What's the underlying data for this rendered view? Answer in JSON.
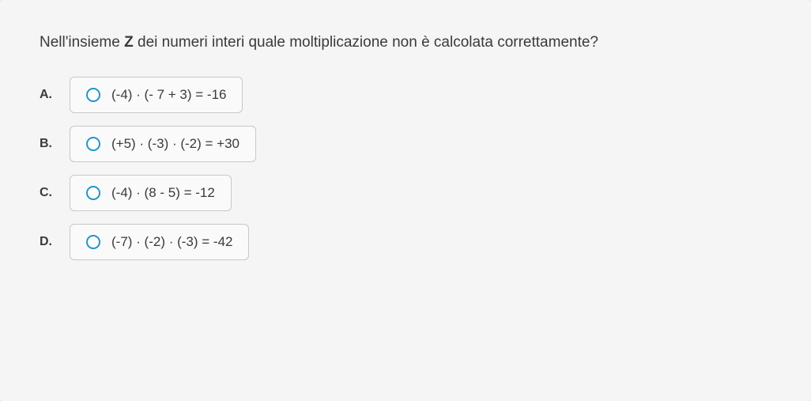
{
  "question": {
    "prefix": "Nell'insieme ",
    "bold": "Z",
    "suffix": " dei numeri interi quale moltiplicazione non è calcolata correttamente?"
  },
  "options": [
    {
      "letter": "A.",
      "text": "(-4) · (- 7 + 3) = -16"
    },
    {
      "letter": "B.",
      "text": "(+5) · (-3) · (-2) = +30"
    },
    {
      "letter": "C.",
      "text": "(-4) · (8 - 5) = -12"
    },
    {
      "letter": "D.",
      "text": "(-7) · (-2) · (-3) = -42"
    }
  ],
  "colors": {
    "radio_border": "#2196c4",
    "box_border": "#c8c8c8",
    "box_bg": "#fafafa",
    "text": "#3a3a3a",
    "body_bg": "#e8e8e8",
    "container_bg": "#f5f5f5"
  }
}
